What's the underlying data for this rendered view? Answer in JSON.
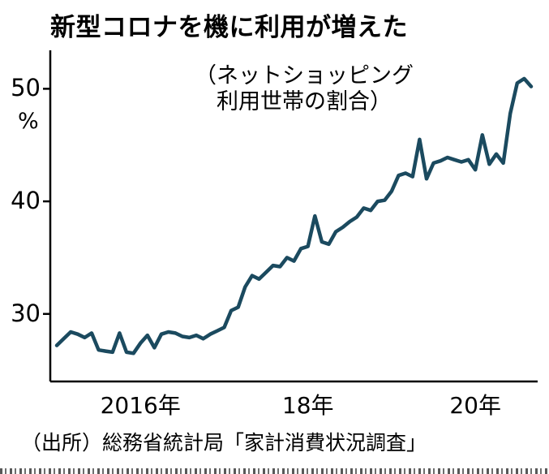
{
  "title": "新型コロナを機に利用が増えた",
  "annotation": {
    "line1": "（ネットショッピング",
    "line2": "利用世帯の割合）"
  },
  "source": "（出所）総務省統計局「家計消費状況調査」",
  "chart_data": {
    "type": "line",
    "title": "新型コロナを機に利用が増えた",
    "subtitle": "（ネットショッピング利用世帯の割合）",
    "x_start": "2015-01",
    "x_end": "2020-09",
    "x_frequency": "monthly",
    "x_tick_labels": [
      "2016年",
      "18年",
      "20年"
    ],
    "x_tick_month_index": [
      12,
      36,
      60
    ],
    "y_ticks": [
      30,
      40,
      50
    ],
    "y_unit": "%",
    "ylim": [
      24.0,
      53.2
    ],
    "grid": false,
    "legend": "none",
    "line_color": "#1b4a5f",
    "axis_color": "#000000",
    "series": [
      {
        "name": "ネットショッピング利用世帯の割合",
        "values": [
          27.2,
          27.8,
          28.4,
          28.2,
          27.9,
          28.3,
          26.8,
          26.7,
          26.6,
          28.3,
          26.6,
          26.5,
          27.4,
          28.1,
          27.0,
          28.2,
          28.4,
          28.3,
          28.0,
          27.9,
          28.1,
          27.8,
          28.2,
          28.5,
          28.8,
          30.3,
          30.6,
          32.4,
          33.4,
          33.1,
          33.7,
          34.3,
          34.2,
          35.0,
          34.7,
          35.8,
          36.0,
          38.7,
          36.4,
          36.2,
          37.3,
          37.7,
          38.2,
          38.6,
          39.4,
          39.2,
          40.0,
          40.1,
          40.9,
          42.3,
          42.5,
          42.2,
          45.5,
          42.0,
          43.4,
          43.6,
          43.9,
          43.7,
          43.5,
          43.7,
          42.8,
          45.9,
          43.3,
          44.2,
          43.4,
          47.8,
          50.5,
          50.9,
          50.2
        ]
      }
    ]
  }
}
